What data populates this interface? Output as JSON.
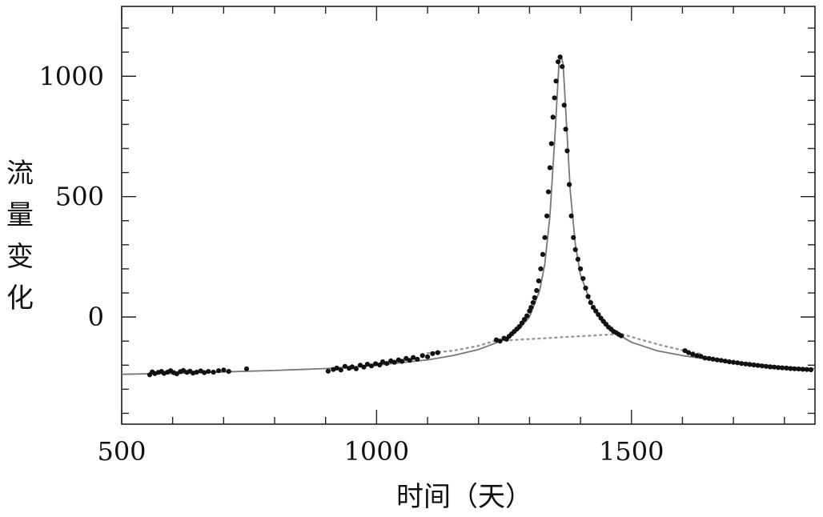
{
  "chart_data": {
    "type": "scatter",
    "title": "",
    "xlabel": "时间（天）",
    "ylabel": "流量变化",
    "xlim": [
      500,
      1860
    ],
    "ylim": [
      -445,
      1290
    ],
    "x_ticks": [
      500,
      1000,
      1500
    ],
    "y_ticks": [
      0,
      500,
      1000
    ],
    "grid": false,
    "legend": "none",
    "colors": {
      "points": "#111111",
      "model_curve": "#777777",
      "dotted_curve": "#999999"
    },
    "series": [
      {
        "type": "scatter",
        "points": [
          [
            555,
            -240
          ],
          [
            560,
            -228
          ],
          [
            565,
            -235
          ],
          [
            572,
            -230
          ],
          [
            578,
            -226
          ],
          [
            583,
            -234
          ],
          [
            590,
            -229
          ],
          [
            596,
            -223
          ],
          [
            602,
            -231
          ],
          [
            608,
            -236
          ],
          [
            615,
            -227
          ],
          [
            621,
            -222
          ],
          [
            628,
            -230
          ],
          [
            634,
            -225
          ],
          [
            640,
            -233
          ],
          [
            647,
            -229
          ],
          [
            655,
            -224
          ],
          [
            662,
            -231
          ],
          [
            670,
            -226
          ],
          [
            680,
            -229
          ],
          [
            690,
            -223
          ],
          [
            700,
            -220
          ],
          [
            710,
            -226
          ],
          [
            745,
            -215
          ],
          [
            905,
            -225
          ],
          [
            915,
            -218
          ],
          [
            922,
            -212
          ],
          [
            930,
            -220
          ],
          [
            938,
            -205
          ],
          [
            946,
            -213
          ],
          [
            952,
            -207
          ],
          [
            960,
            -215
          ],
          [
            968,
            -200
          ],
          [
            975,
            -208
          ],
          [
            982,
            -196
          ],
          [
            990,
            -203
          ],
          [
            998,
            -194
          ],
          [
            1006,
            -199
          ],
          [
            1012,
            -186
          ],
          [
            1020,
            -193
          ],
          [
            1028,
            -182
          ],
          [
            1035,
            -188
          ],
          [
            1043,
            -178
          ],
          [
            1050,
            -184
          ],
          [
            1058,
            -172
          ],
          [
            1065,
            -180
          ],
          [
            1072,
            -168
          ],
          [
            1080,
            -175
          ],
          [
            1090,
            -160
          ],
          [
            1100,
            -165
          ],
          [
            1110,
            -152
          ],
          [
            1120,
            -148
          ],
          [
            1235,
            -95
          ],
          [
            1242,
            -100
          ],
          [
            1250,
            -88
          ],
          [
            1255,
            -92
          ],
          [
            1260,
            -80
          ],
          [
            1265,
            -70
          ],
          [
            1270,
            -60
          ],
          [
            1275,
            -50
          ],
          [
            1280,
            -40
          ],
          [
            1285,
            -25
          ],
          [
            1290,
            -10
          ],
          [
            1295,
            5
          ],
          [
            1300,
            25
          ],
          [
            1303,
            40
          ],
          [
            1307,
            60
          ],
          [
            1310,
            80
          ],
          [
            1314,
            110
          ],
          [
            1318,
            150
          ],
          [
            1322,
            200
          ],
          [
            1326,
            260
          ],
          [
            1330,
            330
          ],
          [
            1334,
            420
          ],
          [
            1337,
            520
          ],
          [
            1340,
            620
          ],
          [
            1343,
            720
          ],
          [
            1346,
            830
          ],
          [
            1349,
            910
          ],
          [
            1352,
            980
          ],
          [
            1356,
            1060
          ],
          [
            1360,
            1080
          ],
          [
            1364,
            1040
          ],
          [
            1368,
            880
          ],
          [
            1371,
            780
          ],
          [
            1374,
            690
          ],
          [
            1378,
            550
          ],
          [
            1382,
            420
          ],
          [
            1386,
            330
          ],
          [
            1390,
            280
          ],
          [
            1395,
            240
          ],
          [
            1400,
            200
          ],
          [
            1405,
            160
          ],
          [
            1410,
            120
          ],
          [
            1415,
            85
          ],
          [
            1420,
            60
          ],
          [
            1425,
            40
          ],
          [
            1430,
            25
          ],
          [
            1435,
            10
          ],
          [
            1440,
            -5
          ],
          [
            1445,
            -18
          ],
          [
            1450,
            -30
          ],
          [
            1455,
            -42
          ],
          [
            1460,
            -50
          ],
          [
            1465,
            -60
          ],
          [
            1470,
            -65
          ],
          [
            1475,
            -72
          ],
          [
            1480,
            -78
          ],
          [
            1605,
            -140
          ],
          [
            1612,
            -148
          ],
          [
            1620,
            -155
          ],
          [
            1628,
            -160
          ],
          [
            1636,
            -163
          ],
          [
            1644,
            -170
          ],
          [
            1652,
            -172
          ],
          [
            1660,
            -175
          ],
          [
            1668,
            -178
          ],
          [
            1676,
            -180
          ],
          [
            1684,
            -183
          ],
          [
            1692,
            -186
          ],
          [
            1700,
            -188
          ],
          [
            1708,
            -190
          ],
          [
            1716,
            -193
          ],
          [
            1724,
            -195
          ],
          [
            1732,
            -197
          ],
          [
            1740,
            -199
          ],
          [
            1748,
            -201
          ],
          [
            1756,
            -203
          ],
          [
            1764,
            -205
          ],
          [
            1772,
            -207
          ],
          [
            1780,
            -208
          ],
          [
            1788,
            -210
          ],
          [
            1796,
            -211
          ],
          [
            1804,
            -212
          ],
          [
            1812,
            -214
          ],
          [
            1820,
            -215
          ],
          [
            1828,
            -216
          ],
          [
            1836,
            -217
          ],
          [
            1844,
            -218
          ],
          [
            1852,
            -219
          ]
        ]
      },
      {
        "type": "line",
        "style": "solid",
        "points": [
          [
            500,
            -238
          ],
          [
            600,
            -234
          ],
          [
            700,
            -228
          ],
          [
            800,
            -222
          ],
          [
            900,
            -214
          ],
          [
            1000,
            -200
          ],
          [
            1100,
            -178
          ],
          [
            1150,
            -160
          ],
          [
            1200,
            -135
          ],
          [
            1250,
            -95
          ],
          [
            1280,
            -50
          ],
          [
            1300,
            0
          ],
          [
            1320,
            110
          ],
          [
            1330,
            220
          ],
          [
            1340,
            420
          ],
          [
            1350,
            760
          ],
          [
            1358,
            1060
          ],
          [
            1362,
            1082
          ],
          [
            1366,
            1050
          ],
          [
            1372,
            820
          ],
          [
            1380,
            520
          ],
          [
            1390,
            300
          ],
          [
            1400,
            175
          ],
          [
            1420,
            60
          ],
          [
            1440,
            -10
          ],
          [
            1460,
            -55
          ],
          [
            1500,
            -105
          ],
          [
            1550,
            -140
          ],
          [
            1600,
            -160
          ],
          [
            1650,
            -175
          ],
          [
            1700,
            -187
          ],
          [
            1750,
            -197
          ],
          [
            1800,
            -207
          ],
          [
            1860,
            -215
          ]
        ]
      },
      {
        "type": "line",
        "style": "dotted",
        "points": [
          [
            1100,
            -150
          ],
          [
            1150,
            -140
          ],
          [
            1200,
            -120
          ],
          [
            1230,
            -100
          ],
          [
            1480,
            -70
          ],
          [
            1520,
            -95
          ],
          [
            1560,
            -118
          ],
          [
            1600,
            -138
          ],
          [
            1640,
            -155
          ]
        ]
      }
    ]
  }
}
